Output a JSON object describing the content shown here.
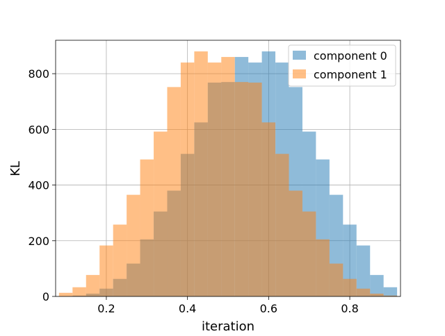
{
  "chart_data": {
    "type": "bar",
    "title": "",
    "xlabel": "iteration",
    "ylabel": "KL",
    "xlim": [
      0.075,
      0.925
    ],
    "ylim": [
      0,
      920
    ],
    "xticks": [
      0.2,
      0.4,
      0.6,
      0.8
    ],
    "xtick_labels": [
      "0.2",
      "0.4",
      "0.6",
      "0.8"
    ],
    "yticks": [
      0,
      200,
      400,
      600,
      800
    ],
    "ytick_labels": [
      "0",
      "200",
      "400",
      "600",
      "800"
    ],
    "grid": true,
    "legend_position": "top-right",
    "bin_width": 0.0333,
    "series": [
      {
        "name": "component 0",
        "color": "#1f77b4",
        "opacity": 0.5,
        "bin_starts": [
          0.1167,
          0.15,
          0.1833,
          0.2167,
          0.25,
          0.2833,
          0.3167,
          0.35,
          0.3833,
          0.4167,
          0.45,
          0.4833,
          0.5167,
          0.55,
          0.5833,
          0.6167,
          0.65,
          0.6833,
          0.7167,
          0.75,
          0.7833,
          0.8167,
          0.85,
          0.8833
        ],
        "values": [
          3,
          10,
          28,
          63,
          118,
          205,
          305,
          380,
          512,
          625,
          768,
          770,
          860,
          840,
          880,
          840,
          752,
          592,
          492,
          365,
          258,
          183,
          77,
          33
        ]
      },
      {
        "name": "component 1",
        "color": "#ff7f0e",
        "opacity": 0.5,
        "bin_starts": [
          0.0833,
          0.1167,
          0.15,
          0.1833,
          0.2167,
          0.25,
          0.2833,
          0.3167,
          0.35,
          0.3833,
          0.4167,
          0.45,
          0.4833,
          0.5167,
          0.55,
          0.5833,
          0.6167,
          0.65,
          0.6833,
          0.7167,
          0.75,
          0.7833,
          0.8167,
          0.85,
          0.8833
        ],
        "values": [
          13,
          33,
          77,
          183,
          258,
          365,
          492,
          592,
          752,
          840,
          880,
          840,
          860,
          770,
          768,
          625,
          512,
          380,
          305,
          205,
          118,
          63,
          28,
          10,
          3
        ]
      }
    ]
  }
}
